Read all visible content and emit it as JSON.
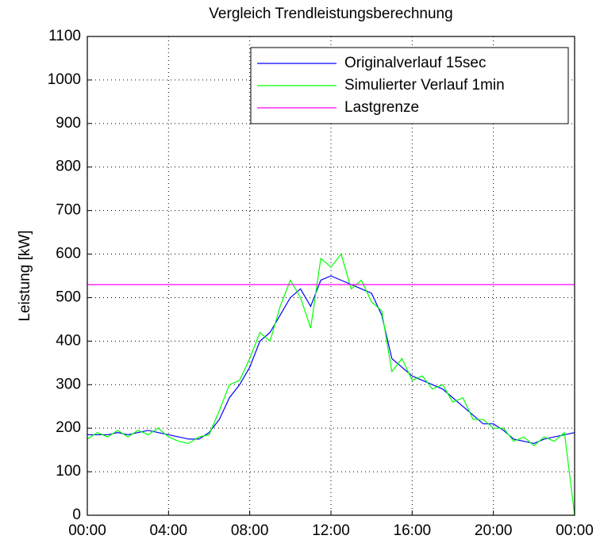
{
  "chart_data": {
    "type": "line",
    "title": "Vergleich Trendleistungsberechnung",
    "y_label": "Leistung [kW]",
    "x": [
      0,
      0.5,
      1,
      1.5,
      2,
      2.5,
      3,
      3.5,
      4,
      4.5,
      5,
      5.5,
      6,
      6.5,
      7,
      7.5,
      8,
      8.5,
      9,
      9.5,
      10,
      10.5,
      11,
      11.5,
      12,
      12.5,
      13,
      13.5,
      14,
      14.5,
      15,
      15.5,
      16,
      16.5,
      17,
      17.5,
      18,
      18.5,
      19,
      19.5,
      20,
      20.5,
      21,
      21.5,
      22,
      22.5,
      23,
      23.5,
      24
    ],
    "series": [
      {
        "name": "Originalverlauf 15sec",
        "color": "#0000ff",
        "values": [
          185,
          185,
          185,
          190,
          185,
          190,
          195,
          190,
          185,
          180,
          175,
          175,
          190,
          220,
          270,
          300,
          340,
          400,
          420,
          460,
          500,
          520,
          480,
          540,
          550,
          540,
          530,
          520,
          510,
          460,
          360,
          340,
          320,
          310,
          300,
          290,
          270,
          250,
          230,
          210,
          210,
          195,
          175,
          170,
          165,
          175,
          180,
          185,
          190
        ]
      },
      {
        "name": "Simulierter Verlauf 1min",
        "color": "#00ff00",
        "values": [
          175,
          190,
          180,
          195,
          180,
          195,
          185,
          200,
          180,
          170,
          165,
          180,
          185,
          240,
          300,
          310,
          360,
          420,
          400,
          480,
          540,
          500,
          430,
          590,
          570,
          600,
          520,
          540,
          490,
          470,
          330,
          360,
          310,
          320,
          290,
          300,
          260,
          270,
          220,
          220,
          200,
          200,
          170,
          180,
          160,
          180,
          170,
          190,
          0
        ]
      },
      {
        "name": "Lastgrenze",
        "color": "#ff00ff",
        "values": [
          530,
          530,
          530,
          530,
          530,
          530,
          530,
          530,
          530,
          530,
          530,
          530,
          530,
          530,
          530,
          530,
          530,
          530,
          530,
          530,
          530,
          530,
          530,
          530,
          530,
          530,
          530,
          530,
          530,
          530,
          530,
          530,
          530,
          530,
          530,
          530,
          530,
          530,
          530,
          530,
          530,
          530,
          530,
          530,
          530,
          530,
          530,
          530,
          530
        ]
      }
    ],
    "xlim": [
      0,
      24
    ],
    "xticks": [
      {
        "value": 0,
        "label": "00:00"
      },
      {
        "value": 4,
        "label": "04:00"
      },
      {
        "value": 8,
        "label": "08:00"
      },
      {
        "value": 12,
        "label": "12:00"
      },
      {
        "value": 16,
        "label": "16:00"
      },
      {
        "value": 20,
        "label": "20:00"
      },
      {
        "value": 24,
        "label": "00:00"
      }
    ],
    "ylim": [
      0,
      1100
    ],
    "yticks": [
      0,
      100,
      200,
      300,
      400,
      500,
      600,
      700,
      800,
      900,
      1000,
      1100
    ],
    "grid": true,
    "legend": "upper right"
  }
}
